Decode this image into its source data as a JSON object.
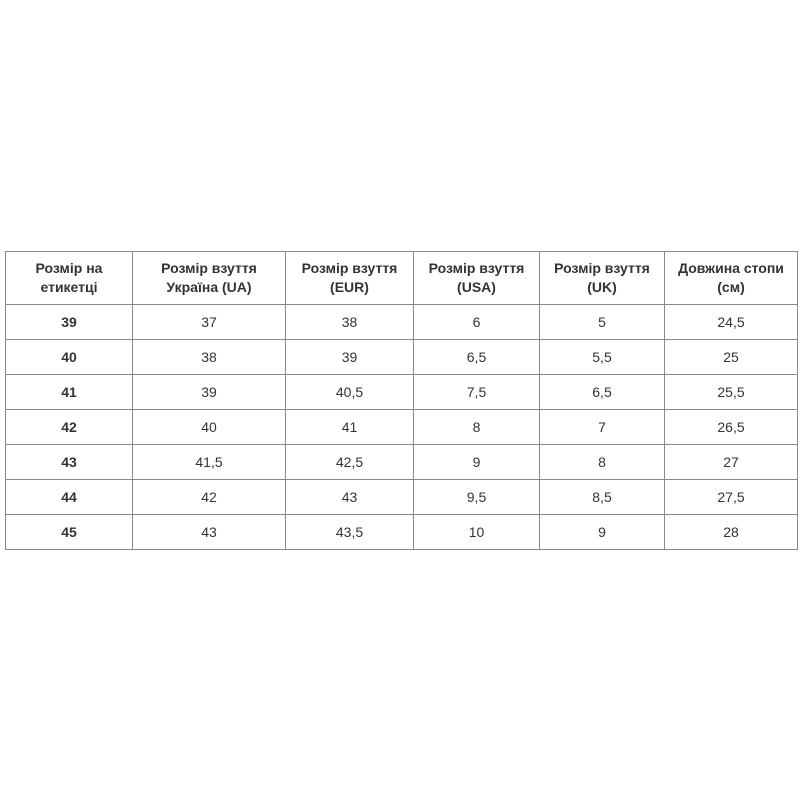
{
  "table": {
    "headers": [
      "Розмір на етикетці",
      "Розмір взуття Україна (UA)",
      "Розмір взуття (EUR)",
      "Розмір взуття (USA)",
      "Розмір взуття (UK)",
      "Довжина стопи (см)"
    ],
    "rows": [
      [
        "39",
        "37",
        "38",
        "6",
        "5",
        "24,5"
      ],
      [
        "40",
        "38",
        "39",
        "6,5",
        "5,5",
        "25"
      ],
      [
        "41",
        "39",
        "40,5",
        "7,5",
        "6,5",
        "25,5"
      ],
      [
        "42",
        "40",
        "41",
        "8",
        "7",
        "26,5"
      ],
      [
        "43",
        "41,5",
        "42,5",
        "9",
        "8",
        "27"
      ],
      [
        "44",
        "42",
        "43",
        "9,5",
        "8,5",
        "27,5"
      ],
      [
        "45",
        "43",
        "43,5",
        "10",
        "9",
        "28"
      ]
    ]
  }
}
